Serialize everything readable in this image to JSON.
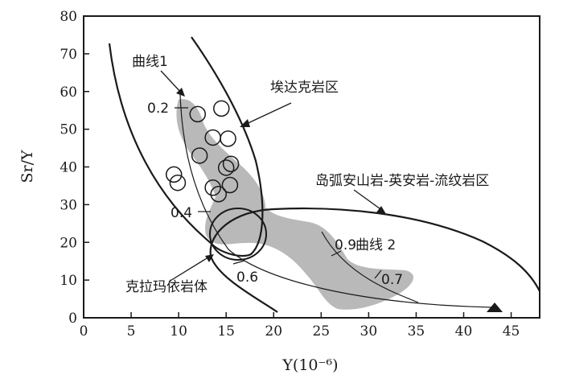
{
  "chart_data": {
    "type": "scatter",
    "xlabel": "Y(10⁻⁶)",
    "ylabel": "Sr/Y",
    "xlim": [
      0,
      48
    ],
    "ylim": [
      0,
      80
    ],
    "x_ticks": [
      0,
      5,
      10,
      15,
      20,
      25,
      30,
      35,
      40,
      45
    ],
    "y_ticks": [
      0,
      10,
      20,
      30,
      40,
      50,
      60,
      70,
      80
    ],
    "grid": false,
    "points": [
      {
        "x": 12.0,
        "y": 54.0
      },
      {
        "x": 14.5,
        "y": 55.5
      },
      {
        "x": 13.6,
        "y": 47.8
      },
      {
        "x": 15.2,
        "y": 47.5
      },
      {
        "x": 12.2,
        "y": 43.0
      },
      {
        "x": 15.0,
        "y": 39.8
      },
      {
        "x": 15.5,
        "y": 40.8
      },
      {
        "x": 9.5,
        "y": 38.0
      },
      {
        "x": 9.9,
        "y": 35.8
      },
      {
        "x": 15.4,
        "y": 35.2
      },
      {
        "x": 13.6,
        "y": 34.5
      },
      {
        "x": 14.2,
        "y": 32.8
      }
    ],
    "fields": [
      {
        "label": "埃达克岩区"
      },
      {
        "label": "岛弧安山岩-英安岩-流纹岩区"
      },
      {
        "label": "克拉玛依岩体"
      }
    ],
    "curves": [
      {
        "label": "曲线1",
        "tick_labels": [
          "0.2",
          "0.4",
          "0.6"
        ]
      },
      {
        "label": "曲线 2",
        "tick_labels": [
          "0.9",
          "0.7"
        ]
      }
    ]
  }
}
